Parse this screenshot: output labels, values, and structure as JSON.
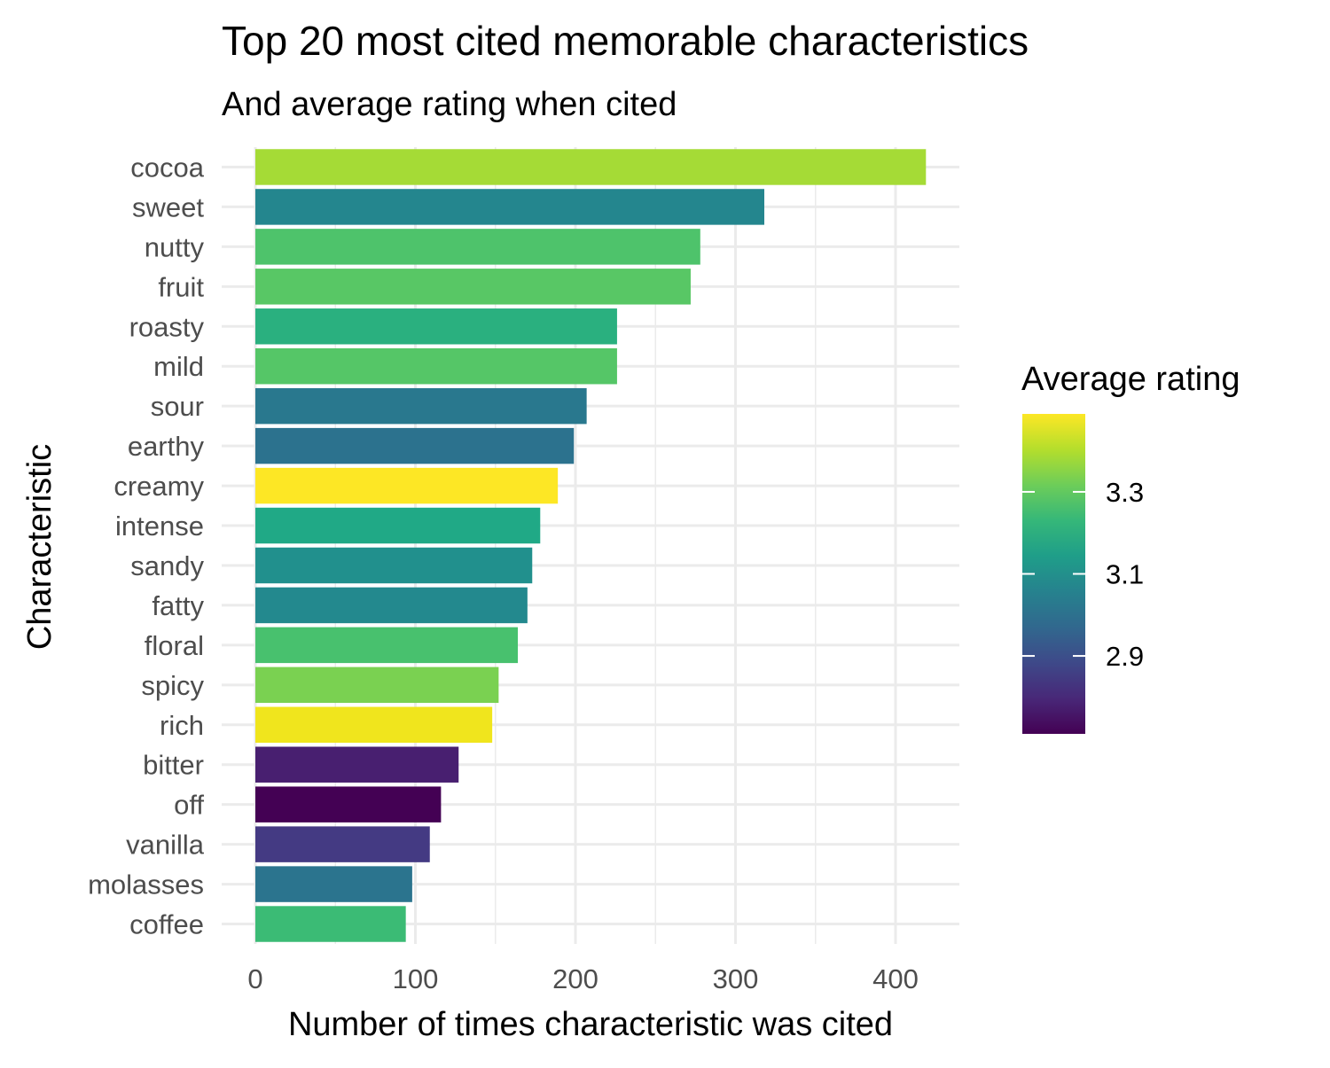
{
  "chart_data": {
    "type": "bar",
    "orientation": "horizontal",
    "title": "Top 20 most cited memorable characteristics",
    "subtitle": "And average rating when cited",
    "xlabel": "Number of times characteristic was cited",
    "ylabel": "Characteristic",
    "xlim": [
      0,
      440
    ],
    "x_ticks": [
      0,
      100,
      200,
      300,
      400
    ],
    "x_tick_labels": [
      "0",
      "100",
      "200",
      "300",
      "400"
    ],
    "grid": true,
    "categories": [
      "cocoa",
      "sweet",
      "nutty",
      "fruit",
      "roasty",
      "mild",
      "sour",
      "earthy",
      "creamy",
      "intense",
      "sandy",
      "fatty",
      "floral",
      "spicy",
      "rich",
      "bitter",
      "off",
      "vanilla",
      "molasses",
      "coffee"
    ],
    "values": [
      419,
      318,
      278,
      272,
      226,
      226,
      207,
      199,
      189,
      178,
      173,
      170,
      164,
      152,
      148,
      127,
      116,
      109,
      98,
      94
    ],
    "avg_rating": [
      3.34,
      3.08,
      3.27,
      3.27,
      3.2,
      3.27,
      3.05,
      3.04,
      3.44,
      3.19,
      3.12,
      3.1,
      3.25,
      3.3,
      3.43,
      2.82,
      2.72,
      2.86,
      3.04,
      3.22
    ],
    "colors": [
      "#A5DB36",
      "#24868E",
      "#4EC36B",
      "#58C765",
      "#2AB07F",
      "#55C667",
      "#29788E",
      "#2C728E",
      "#FDE725",
      "#20A986",
      "#21908D",
      "#23898E",
      "#48C16E",
      "#7AD151",
      "#F0E51D",
      "#481F70",
      "#440154",
      "#443A83",
      "#2B748E",
      "#3BBB75"
    ],
    "legend": {
      "title": "Average rating",
      "position": "right",
      "type": "colorbar",
      "range": [
        2.71,
        3.49
      ],
      "ticks": [
        2.9,
        3.1,
        3.3
      ],
      "tick_labels": [
        "2.9",
        "3.1",
        "3.3"
      ],
      "colormap": [
        "#440154",
        "#482878",
        "#3E4989",
        "#31688E",
        "#26828E",
        "#1F9E89",
        "#35B779",
        "#6DCD59",
        "#B4DE2C",
        "#FDE725"
      ]
    }
  }
}
